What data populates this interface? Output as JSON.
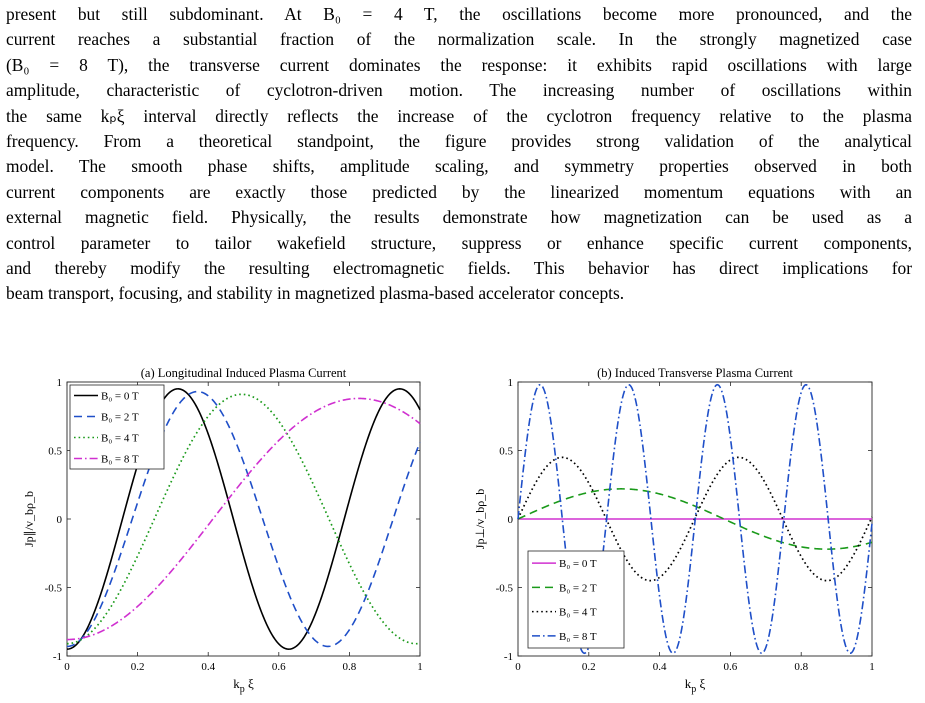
{
  "paragraph": {
    "lines": [
      "present but still subdominant. At B₀ = 4 T, the oscillations become more pronounced, and the",
      "current reaches a substantial fraction of the normalization scale. In the strongly magnetized case",
      "(B₀ = 8 T), the transverse current dominates the response: it exhibits rapid oscillations with large",
      "amplitude, characteristic of cyclotron-driven motion. The increasing number of oscillations within",
      "the same kₚξ interval directly reflects the increase of the cyclotron frequency relative to the plasma",
      "frequency. From a theoretical standpoint, the figure provides strong validation of the analytical",
      "model. The smooth phase shifts, amplitude scaling, and symmetry properties observed in both",
      "current components are exactly those predicted by the linearized momentum equations with an",
      "external magnetic field. Physically, the results demonstrate how magnetization can be used as a",
      "control parameter to tailor wakefield structure, suppress or enhance specific current components,",
      "and thereby modify the resulting electromagnetic fields. This behavior has direct implications for",
      "beam transport, focusing, and stability in magnetized plasma-based accelerator concepts."
    ]
  },
  "chart_data": [
    {
      "type": "line",
      "title": "(a) Longitudinal Induced Plasma Current",
      "xlabel": "k_p ξ",
      "ylabel": "J_p∥/v_bρ_b",
      "xlim": [
        0,
        1
      ],
      "ylim": [
        -1,
        1
      ],
      "xticks": [
        "0",
        "0.2",
        "0.4",
        "0.6",
        "0.8",
        "1"
      ],
      "yticks": [
        "-1",
        "-0.5",
        "0",
        "0.5",
        "1"
      ],
      "legend_position": "top-left",
      "series": [
        {
          "name": "B₀ = 0 T",
          "color": "#000000",
          "dash": "solid",
          "model": "cos",
          "amp": 0.95,
          "omega": 10.0
        },
        {
          "name": "B₀ = 2 T",
          "color": "#1f4fc8",
          "dash": "dashed",
          "model": "cos",
          "amp": 0.93,
          "omega": 8.5
        },
        {
          "name": "B₀ = 4 T",
          "color": "#1a9a1a",
          "dash": "dotted",
          "model": "cos",
          "amp": 0.91,
          "omega": 6.35
        },
        {
          "name": "B₀ = 8 T",
          "color": "#d030d0",
          "dash": "dashdot",
          "model": "cos",
          "amp": 0.88,
          "omega": 3.8
        }
      ]
    },
    {
      "type": "line",
      "title": "(b) Induced Transverse Plasma Current",
      "xlabel": "k_p ξ",
      "ylabel": "J_p⊥/v_bρ_b",
      "xlim": [
        0,
        1
      ],
      "ylim": [
        -1,
        1
      ],
      "xticks": [
        "0",
        "0.2",
        "0.4",
        "0.6",
        "0.8",
        "1"
      ],
      "yticks": [
        "-1",
        "-0.5",
        "0",
        "0.5",
        "1"
      ],
      "legend_position": "bottom-left",
      "series": [
        {
          "name": "B₀ = 0 T",
          "color": "#d030d0",
          "dash": "solid",
          "model": "sin",
          "amp": 0.0,
          "omega": 1.0
        },
        {
          "name": "B₀ = 2 T",
          "color": "#1a9a1a",
          "dash": "dashed",
          "model": "sin",
          "amp": 0.22,
          "omega": 5.4
        },
        {
          "name": "B₀ = 4 T",
          "color": "#000000",
          "dash": "dotted",
          "model": "sin",
          "amp": 0.45,
          "omega": 12.6
        },
        {
          "name": "B₀ = 8 T",
          "color": "#1f4fc8",
          "dash": "dashdot",
          "model": "sin",
          "amp": 0.98,
          "omega": 25.1
        }
      ]
    }
  ]
}
